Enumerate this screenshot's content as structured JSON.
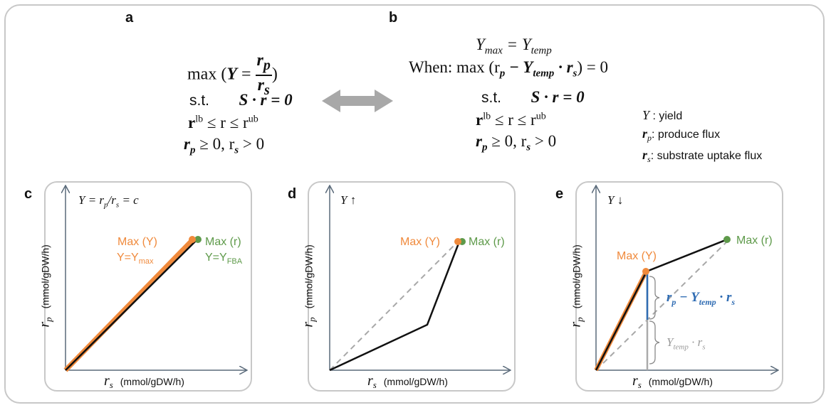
{
  "labels": {
    "a": "a",
    "b": "b",
    "c": "c",
    "d": "d",
    "e": "e"
  },
  "eqA": {
    "max_word": "max (",
    "Y": "Y",
    "eq": "=",
    "rp": "r",
    "rp_sub": "p",
    "rs": "r",
    "rs_sub": "s",
    "close": ")",
    "st": "s.t.",
    "constraint1": "S · r = 0",
    "constraint2": "r",
    "lb": "lb",
    "le1": " ≤ r ≤ r",
    "ub": "ub",
    "constraint3": "r",
    "c3_rest": " ≥ 0, r",
    "c3_end": " > 0"
  },
  "eqB": {
    "line1": "Y",
    "line1_sub1": "max",
    "line1_eq": " = Y",
    "line1_sub2": "temp",
    "when": "When: max (r",
    "when_p": "p",
    "when_mid": " − Y",
    "when_temp": "temp",
    "when_end": " · r",
    "when_s": "s",
    "when_close": ") = 0",
    "st": "s.t.",
    "constraint1": "S · r = 0",
    "constraint2": "r",
    "lb": "lb",
    "le1": " ≤ r ≤ r",
    "ub": "ub",
    "constraint3": "r",
    "c3_rest": " ≥ 0, r",
    "c3_end": " > 0"
  },
  "legend": {
    "y_sym": "Y",
    "y_text": " : yield",
    "rp_sym": "r",
    "rp_sub": "p",
    "rp_text": ": produce flux",
    "rs_sym": "r",
    "rs_sub": "s",
    "rs_text": ": substrate uptake flux"
  },
  "axes": {
    "x_sym": "r",
    "x_sub": "s",
    "x_unit": "(mmol/gDW/h)",
    "y_sym": "r",
    "y_sub": "p",
    "y_unit": "(mmol/gDW/h)"
  },
  "panelC": {
    "formula": "Y = r",
    "f_p": "p",
    "f_s": "s",
    "f_end": "= c",
    "maxY": "Max (Y)",
    "yYmax": "Y=Y",
    "yYmax_sub": "max",
    "maxR": "Max (r)",
    "yFBA": "Y=Y",
    "yFBA_sub": "FBA"
  },
  "panelD": {
    "y_arrow": "Y ↑",
    "maxY": "Max (Y)",
    "maxR": "Max (r)"
  },
  "panelE": {
    "y_arrow": "Y ↓",
    "maxY": "Max (Y)",
    "maxR": "Max (r)",
    "gap_label": "r",
    "gap_p": "p",
    "gap_mid": " − Y",
    "gap_temp": "temp",
    "gap_end": " · r",
    "gap_s": "s",
    "base_label": "Y",
    "base_temp": "temp",
    "base_end": " · r",
    "base_s": "s"
  },
  "colors": {
    "orange": "#f08a3c",
    "green": "#5e9a4a",
    "blue": "#2f6cb3",
    "gray": "#a8a8a8",
    "black": "#111111"
  }
}
